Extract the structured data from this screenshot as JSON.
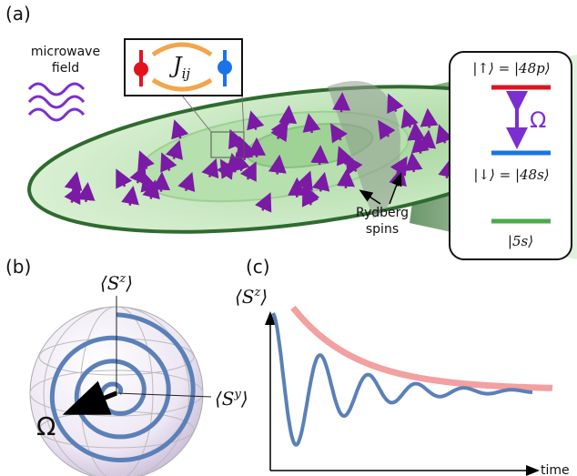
{
  "panel_a": {
    "label": "(a)",
    "microwave_label": [
      "microwave",
      "field"
    ],
    "coupling": {
      "base": "J",
      "sub": "ij"
    },
    "levels": [
      "|↑⟩ = |48p⟩",
      "|↓⟩ = |48s⟩",
      "|5s⟩"
    ],
    "rabi": "Ω",
    "spins_label": [
      "Rydberg",
      "spins"
    ]
  },
  "panel_b": {
    "label": "(b)",
    "z_axis": {
      "base": "⟨S",
      "sup": "z",
      "close": "⟩"
    },
    "y_axis": {
      "base": "⟨S",
      "sup": "y",
      "close": "⟩"
    },
    "rabi": "Ω"
  },
  "panel_c": {
    "label": "(c)",
    "y_axis": {
      "base": "⟨S",
      "sup": "z",
      "close": "⟩"
    },
    "x_axis": "time"
  }
}
